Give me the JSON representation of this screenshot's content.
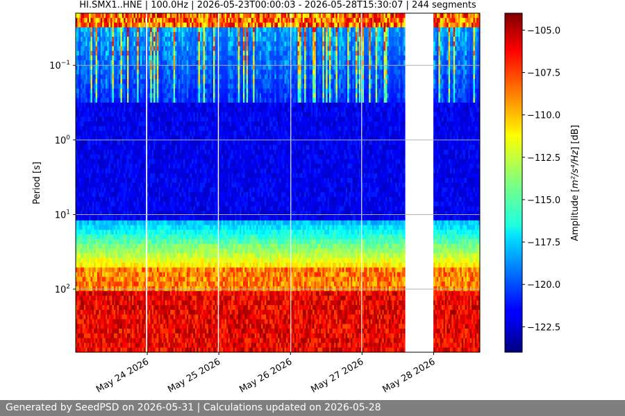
{
  "chart_data": {
    "type": "heatmap",
    "title": "HI.SMX1..HNE | 100.0Hz | 2026-05-23T00:00:03 - 2026-05-28T15:30:07 | 244 segments",
    "ylabel": "Period [s]",
    "y_scale": "log",
    "y_inverted": true,
    "ylim": [
      0.02,
      700
    ],
    "y_ticks": [
      {
        "value": 0.1,
        "base": "10",
        "exp": "−1"
      },
      {
        "value": 1,
        "base": "10",
        "exp": "0"
      },
      {
        "value": 10,
        "base": "10",
        "exp": "1"
      },
      {
        "value": 100,
        "base": "10",
        "exp": "2"
      }
    ],
    "xlim": [
      "2026-05-23T00:00:03",
      "2026-05-28T15:30:07"
    ],
    "x_ticks": [
      {
        "label": "May 24 2026",
        "value": "2026-05-24T00:00:00"
      },
      {
        "label": "May 25 2026",
        "value": "2026-05-25T00:00:00"
      },
      {
        "label": "May 26 2026",
        "value": "2026-05-26T00:00:00"
      },
      {
        "label": "May 27 2026",
        "value": "2026-05-27T00:00:00"
      },
      {
        "label": "May 28 2026",
        "value": "2026-05-28T00:00:00"
      }
    ],
    "grid": "horizontal at decades",
    "colormap": "jet",
    "colorbar": {
      "label_prefix": "Amplitude [",
      "label_units": "m²/s⁴/Hz",
      "label_suffix": "] [dB]",
      "range": [
        -124,
        -104
      ],
      "ticks": [
        "−105.0",
        "−107.5",
        "−110.0",
        "−112.5",
        "−115.0",
        "−117.5",
        "−120.0",
        "−122.5"
      ],
      "tick_values": [
        -105.0,
        -107.5,
        -110.0,
        -112.5,
        -115.0,
        -117.5,
        -120.0,
        -122.5
      ]
    },
    "data_gaps": [
      {
        "start": "2026-05-23T23:35:00",
        "end": "2026-05-24T00:00:00"
      },
      {
        "start": "2026-05-24T23:40:00",
        "end": "2026-05-25T00:00:00"
      },
      {
        "start": "2026-05-26T00:00:00",
        "end": "2026-05-26T00:15:00"
      },
      {
        "start": "2026-05-26T23:45:00",
        "end": "2026-05-27T00:00:00"
      },
      {
        "start": "2026-05-27T14:30:00",
        "end": "2026-05-27T23:55:00"
      }
    ],
    "bands": [
      {
        "period_min": 0.02,
        "period_max": 0.03,
        "level": "high"
      },
      {
        "period_min": 0.03,
        "period_max": 0.3,
        "level": "low with bursts"
      },
      {
        "period_min": 0.3,
        "period_max": 12,
        "level": "lowest"
      },
      {
        "period_min": 12,
        "period_max": 50,
        "level": "medium"
      },
      {
        "period_min": 50,
        "period_max": 100,
        "level": "medium-high"
      },
      {
        "period_min": 100,
        "period_max": 700,
        "level": "high"
      }
    ]
  },
  "footer": {
    "text": "Generated by SeedPSD on 2026-05-31 | Calculations updated on 2026-05-28"
  },
  "colors": {
    "footer_bg": "#7f7f7f",
    "footer_text": "#ffffff",
    "grid": "#b0b0b0"
  }
}
